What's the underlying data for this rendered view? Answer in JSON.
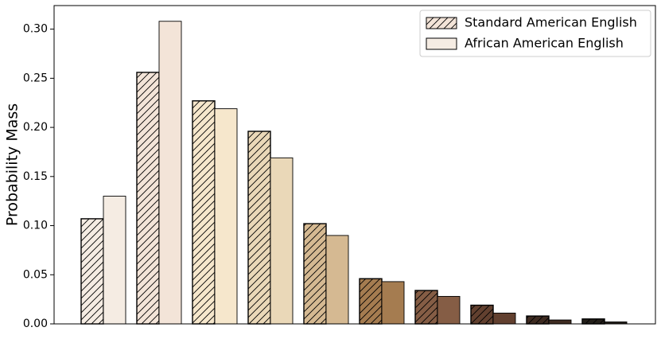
{
  "chart_data": {
    "type": "grouped-bar",
    "y_label": "Probability Mass",
    "colors": [
      "#f5ece3",
      "#f3e4d8",
      "#f6e7cc",
      "#ead8b8",
      "#d5b992",
      "#a57c50",
      "#855d45",
      "#62402f",
      "#3e2b21",
      "#24201a"
    ],
    "series": [
      {
        "name": "Standard American English",
        "color": "#f3e4d8",
        "hatch": true,
        "values": [
          0.107,
          0.256,
          0.227,
          0.196,
          0.102,
          0.046,
          0.034,
          0.019,
          0.008,
          0.005
        ]
      },
      {
        "name": "African American English",
        "color": "#f5ece3",
        "hatch": false,
        "values": [
          0.13,
          0.308,
          0.219,
          0.169,
          0.09,
          0.043,
          0.028,
          0.011,
          0.004,
          0.002
        ]
      }
    ],
    "ylim": [
      0,
      0.324
    ],
    "yticks": [
      {
        "value": 0,
        "label": "0.00"
      },
      {
        "value": 0.05,
        "label": "0.05"
      },
      {
        "value": 0.1,
        "label": "0.10"
      },
      {
        "value": 0.15,
        "label": "0.15"
      },
      {
        "value": 0.2,
        "label": "0.20"
      },
      {
        "value": 0.25,
        "label": "0.25"
      },
      {
        "value": 0.3,
        "label": "0.30"
      }
    ],
    "legend": "upper-right"
  }
}
